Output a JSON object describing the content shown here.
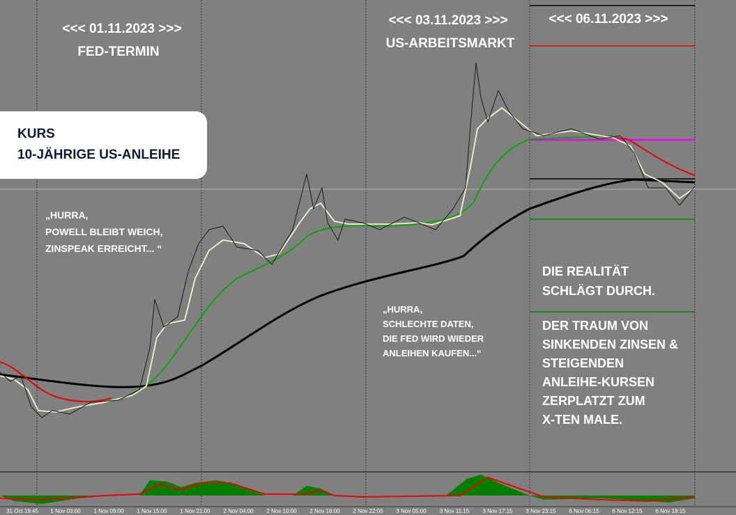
{
  "annotations": {
    "date1": "<<< 01.11.2023 >>>",
    "event1": "FED-TERMIN",
    "date2": "<<< 03.11.2023 >>>",
    "event2": "US-ARBEITSMARKT",
    "date3": "<<< 06.11.2023 >>>",
    "box": [
      "KURS",
      "10-JÄHRIGE US-ANLEIHE"
    ],
    "quote1": [
      "„HURRA,",
      "POWELL BLEIBT WEICH,",
      "ZINSPEAK ERREICHT... “"
    ],
    "quote2": [
      "„HURRA,",
      "SCHLECHTE DATEN,",
      "DIE FED WIRD WIEDER",
      "ANLEIHEN KAUFEN...“"
    ],
    "reality": [
      "DIE REALITÄT",
      "SCHLÄGT DURCH."
    ],
    "dream": [
      "DER TRAUM VON",
      "SINKENDEN ZINSEN &",
      "STEIGENDEN",
      "ANLEIHE-KURSEN",
      "ZERPLATZT ZUM",
      "X-TEN MALE."
    ]
  },
  "x_axis": [
    "31 Oct 19:45",
    "1 Nov 03:00",
    "1 Nov 09:00",
    "1 Nov 15:00",
    "1 Nov 21:00",
    "2 Nov 04:00",
    "2 Nov 10:00",
    "2 Nov 16:00",
    "2 Nov 22:00",
    "3 Nov 05:00",
    "3 Nov 11:15",
    "3 Nov 17:15",
    "3 Nov 23:15",
    "6 Nov 06:15",
    "6 Nov 12:15",
    "6 Nov 18:15"
  ]
}
